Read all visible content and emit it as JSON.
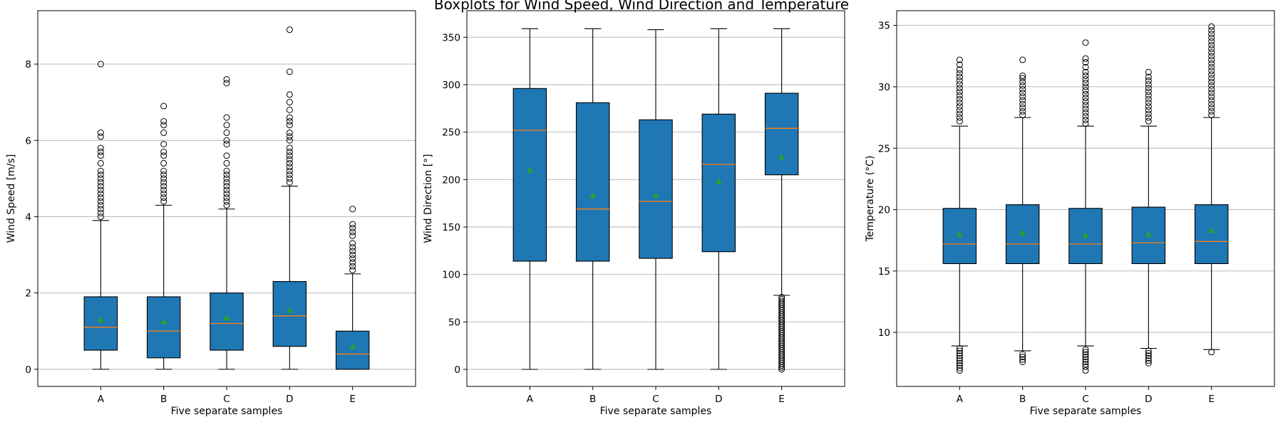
{
  "figure": {
    "title": "Boxplots for Wind Speed, Wind Direction and Temperature"
  },
  "colors": {
    "box_fill": "#1f77b4",
    "median": "#ff7f0e",
    "mean": "#2ca02c",
    "grid": "#b0b0b0"
  },
  "chart_data": [
    {
      "type": "boxplot",
      "title": "",
      "xlabel": "Five separate samples",
      "ylabel": "Wind Speed [m/s]",
      "ylim": [
        -0.45,
        9.4
      ],
      "yticks": [
        0,
        2,
        4,
        6,
        8
      ],
      "grid": "y",
      "categories": [
        "A",
        "B",
        "C",
        "D",
        "E"
      ],
      "boxes": [
        {
          "q1": 0.5,
          "median": 1.1,
          "q3": 1.9,
          "whisker_low": 0,
          "whisker_high": 3.9,
          "mean": 1.3,
          "outliers": [
            4.0,
            4.1,
            4.2,
            4.3,
            4.4,
            4.5,
            4.6,
            4.7,
            4.8,
            4.9,
            5.0,
            5.1,
            5.2,
            5.4,
            5.6,
            5.7,
            5.8,
            6.1,
            6.2,
            8.0
          ]
        },
        {
          "q1": 0.3,
          "median": 1.0,
          "q3": 1.9,
          "whisker_low": 0,
          "whisker_high": 4.3,
          "mean": 1.25,
          "outliers": [
            4.4,
            4.5,
            4.6,
            4.7,
            4.8,
            4.9,
            5.0,
            5.1,
            5.2,
            5.4,
            5.6,
            5.7,
            5.9,
            6.2,
            6.4,
            6.5,
            6.9
          ]
        },
        {
          "q1": 0.5,
          "median": 1.2,
          "q3": 2.0,
          "whisker_low": 0,
          "whisker_high": 4.2,
          "mean": 1.35,
          "outliers": [
            4.3,
            4.4,
            4.5,
            4.6,
            4.7,
            4.8,
            4.9,
            5.0,
            5.1,
            5.2,
            5.4,
            5.6,
            5.9,
            6.0,
            6.2,
            6.4,
            6.6,
            7.5,
            7.6
          ]
        },
        {
          "q1": 0.6,
          "median": 1.4,
          "q3": 2.3,
          "whisker_low": 0,
          "whisker_high": 4.8,
          "mean": 1.55,
          "outliers": [
            4.9,
            5.0,
            5.1,
            5.2,
            5.3,
            5.4,
            5.5,
            5.6,
            5.7,
            5.8,
            6.0,
            6.1,
            6.2,
            6.4,
            6.5,
            6.6,
            6.8,
            7.0,
            7.2,
            7.8,
            8.9
          ]
        },
        {
          "q1": 0.0,
          "median": 0.4,
          "q3": 1.0,
          "whisker_low": 0,
          "whisker_high": 2.5,
          "mean": 0.6,
          "outliers": [
            2.6,
            2.7,
            2.8,
            2.9,
            3.0,
            3.1,
            3.2,
            3.3,
            3.5,
            3.6,
            3.7,
            3.8,
            4.2
          ]
        }
      ]
    },
    {
      "type": "boxplot",
      "title": "",
      "xlabel": "Five separate samples",
      "ylabel": "Wind Direction [°]",
      "ylim": [
        -18,
        378
      ],
      "yticks": [
        0,
        50,
        100,
        150,
        200,
        250,
        300,
        350
      ],
      "grid": "y",
      "categories": [
        "A",
        "B",
        "C",
        "D",
        "E"
      ],
      "boxes": [
        {
          "q1": 114,
          "median": 252,
          "q3": 296,
          "whisker_low": 0,
          "whisker_high": 359,
          "mean": 210,
          "outliers": []
        },
        {
          "q1": 114,
          "median": 169,
          "q3": 281,
          "whisker_low": 0,
          "whisker_high": 359,
          "mean": 183,
          "outliers": []
        },
        {
          "q1": 117,
          "median": 177,
          "q3": 263,
          "whisker_low": 0,
          "whisker_high": 358,
          "mean": 183,
          "outliers": []
        },
        {
          "q1": 124,
          "median": 216,
          "q3": 269,
          "whisker_low": 0,
          "whisker_high": 359,
          "mean": 198,
          "outliers": []
        },
        {
          "q1": 205,
          "median": 254,
          "q3": 291,
          "whisker_low": 78,
          "whisker_high": 359,
          "mean": 224,
          "outliers": [
            0,
            2,
            4,
            6,
            8,
            10,
            12,
            14,
            16,
            18,
            20,
            22,
            24,
            26,
            28,
            30,
            32,
            34,
            36,
            38,
            40,
            42,
            44,
            46,
            48,
            50,
            52,
            54,
            56,
            58,
            60,
            62,
            64,
            66,
            68,
            70,
            72,
            74,
            76
          ]
        }
      ]
    },
    {
      "type": "boxplot",
      "title": "",
      "xlabel": "Five separate samples",
      "ylabel": "Temperature (°C)",
      "ylim": [
        5.6,
        36.2
      ],
      "yticks": [
        10,
        15,
        20,
        25,
        30,
        35
      ],
      "grid": "y",
      "categories": [
        "A",
        "B",
        "C",
        "D",
        "E"
      ],
      "boxes": [
        {
          "q1": 15.6,
          "median": 17.2,
          "q3": 20.1,
          "whisker_low": 8.9,
          "whisker_high": 26.8,
          "mean": 18.0,
          "outliers": [
            6.9,
            7.1,
            7.3,
            7.5,
            7.7,
            7.9,
            8.1,
            8.3,
            8.5,
            8.7,
            27.2,
            27.5,
            27.8,
            28.1,
            28.4,
            28.7,
            29.0,
            29.3,
            29.6,
            29.9,
            30.2,
            30.5,
            30.8,
            31.1,
            31.4,
            31.8,
            32.2
          ]
        },
        {
          "q1": 15.6,
          "median": 17.2,
          "q3": 20.4,
          "whisker_low": 8.5,
          "whisker_high": 27.5,
          "mean": 18.1,
          "outliers": [
            7.6,
            7.8,
            8.0,
            8.2,
            27.7,
            28.0,
            28.3,
            28.6,
            28.9,
            29.2,
            29.5,
            29.8,
            30.1,
            30.4,
            30.7,
            30.9,
            32.2
          ]
        },
        {
          "q1": 15.6,
          "median": 17.2,
          "q3": 20.1,
          "whisker_low": 8.9,
          "whisker_high": 26.8,
          "mean": 17.9,
          "outliers": [
            6.9,
            7.2,
            7.4,
            7.6,
            7.8,
            8.0,
            8.2,
            8.4,
            8.6,
            27.0,
            27.3,
            27.6,
            27.9,
            28.2,
            28.5,
            28.8,
            29.1,
            29.4,
            29.7,
            30.0,
            30.3,
            30.6,
            30.9,
            31.2,
            31.6,
            32.0,
            32.3,
            33.6
          ]
        },
        {
          "q1": 15.6,
          "median": 17.3,
          "q3": 20.2,
          "whisker_low": 8.7,
          "whisker_high": 26.8,
          "mean": 18.0,
          "outliers": [
            7.5,
            7.7,
            7.9,
            8.1,
            8.3,
            8.5,
            27.2,
            27.5,
            27.8,
            28.1,
            28.4,
            28.7,
            29.0,
            29.3,
            29.6,
            29.9,
            30.2,
            30.5,
            30.8,
            31.2
          ]
        },
        {
          "q1": 15.6,
          "median": 17.4,
          "q3": 20.4,
          "whisker_low": 8.6,
          "whisker_high": 27.5,
          "mean": 18.3,
          "outliers": [
            8.4,
            27.7,
            28.0,
            28.3,
            28.6,
            28.9,
            29.2,
            29.5,
            29.8,
            30.1,
            30.4,
            30.7,
            31.0,
            31.3,
            31.6,
            31.9,
            32.2,
            32.5,
            32.8,
            33.1,
            33.4,
            33.7,
            34.0,
            34.3,
            34.6,
            34.9
          ]
        }
      ]
    }
  ]
}
